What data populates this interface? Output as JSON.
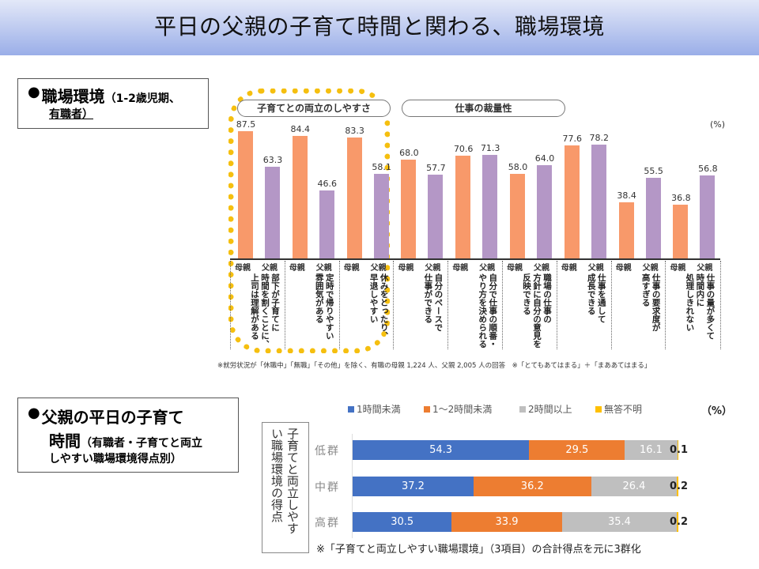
{
  "header": {
    "title": "平日の父親の子育て時間と関わる、職場環境"
  },
  "section1": {
    "bullet": "●",
    "title": "職場環境",
    "subtitle_line1": "（1-2歳児期、",
    "subtitle_line2": "有職者）"
  },
  "section2": {
    "bullet": "●",
    "title_line1": "父親の平日の子育て",
    "title_line2_big": "時間",
    "title_line2_small": "（有職者・子育てと両立",
    "title_line3": "しやすい職場環境得点別）"
  },
  "colors": {
    "mother": "#f8996a",
    "father": "#b497c6",
    "highlight_frame": "#f5bf0f",
    "under1h": "#4472c4",
    "1to2h": "#ed7d31",
    "over2h": "#bfbfbf",
    "no_answer": "#ffc000"
  },
  "chart_data": [
    {
      "type": "bar",
      "title": "職場環境（1-2歳児期、有職者）",
      "unit": "(%)",
      "ylim": [
        0,
        100
      ],
      "group_labels": [
        "子育てとの両立のしやすさ",
        "仕事の裁量性"
      ],
      "series_names": [
        "母親",
        "父親"
      ],
      "categories": [
        "部下が子育てに時間を割くことに、上司は理解がある",
        "定時で帰りやすい雰囲気がある",
        "休みをとったり、早退しやすい",
        "自分のペースで仕事ができる",
        "自分で仕事の順番・やり方を決められる",
        "職場の仕事の方針に自分の意見を反映できる",
        "仕事を通して成長できる",
        "仕事の要求度が高すぎる",
        "仕事の量が多くて時間内に処理しきれない"
      ],
      "category_lines": [
        [
          "部下が子育てに",
          "時間を割くことに、",
          "上司は理解がある"
        ],
        [
          "定時で帰りやすい",
          "雰囲気がある"
        ],
        [
          "休みをとったり、",
          "早退しやすい"
        ],
        [
          "自分のペースで",
          "仕事ができる"
        ],
        [
          "自分で仕事の順番・",
          "やり方を決められる"
        ],
        [
          "職場の仕事の",
          "方針に自分の意見を",
          "反映できる"
        ],
        [
          "仕事を通して",
          "成長できる"
        ],
        [
          "仕事の要求度が",
          "高すぎる"
        ],
        [
          "仕事の量が多くて",
          "時間内に",
          "処理しきれない"
        ]
      ],
      "series": [
        {
          "name": "母親",
          "values": [
            87.5,
            84.4,
            83.3,
            68.0,
            70.6,
            58.0,
            77.6,
            38.4,
            36.8
          ]
        },
        {
          "name": "父親",
          "values": [
            63.3,
            46.6,
            58.1,
            57.7,
            71.3,
            64.0,
            78.2,
            55.5,
            56.8
          ]
        }
      ],
      "value_labels": {
        "母親": [
          "87.5",
          "84.4",
          "83.3",
          "68.0",
          "70.6",
          "58.0",
          "77.6",
          "38.4",
          "36.8"
        ],
        "父親": [
          "63.3",
          "46.6",
          "58.1",
          "57.7",
          "71.3",
          "64.0",
          "78.2",
          "55.5",
          "56.8"
        ]
      },
      "footnote": "※就労状況が「休職中」「無職」「その他」を除く、有職の母親 1,224 人、父親 2,005 人の回答　※「とてもあてはまる」＋「まああてはまる」"
    },
    {
      "type": "bar",
      "orientation": "horizontal-stacked",
      "unit": "（%）",
      "axis_title_col1": "子育てと両立しやす",
      "axis_title_col2": "い職場環境の得点",
      "categories": [
        "低群",
        "中群",
        "高群"
      ],
      "xlim": [
        0,
        100
      ],
      "series": [
        {
          "name": "1時間未満",
          "values": [
            54.3,
            37.2,
            30.5
          ],
          "labels": [
            "54.3",
            "37.2",
            "30.5"
          ]
        },
        {
          "name": "1～2時間未満",
          "values": [
            29.5,
            36.2,
            33.9
          ],
          "labels": [
            "29.5",
            "36.2",
            "33.9"
          ]
        },
        {
          "name": "2時間以上",
          "values": [
            16.1,
            26.4,
            35.4
          ],
          "labels": [
            "16.1",
            "26.4",
            "35.4"
          ]
        },
        {
          "name": "無答不明",
          "values": [
            0.1,
            0.2,
            0.2
          ],
          "labels": [
            "0.1",
            "0.2",
            "0.2"
          ]
        }
      ],
      "footnote": "※「子育てと両立しやすい職場環境」（3項目）の合計得点を元に3群化"
    }
  ]
}
